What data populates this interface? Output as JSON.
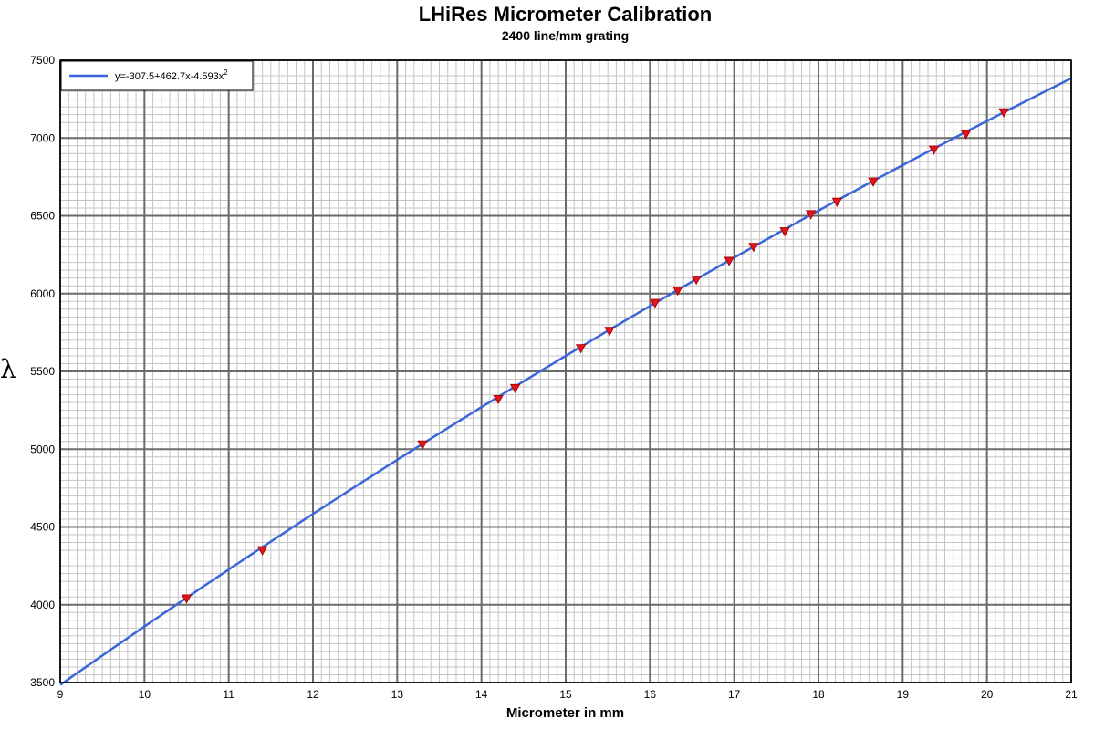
{
  "chart_data": {
    "type": "scatter",
    "title": "LHiRes Micrometer Calibration",
    "subtitle": "2400 line/mm grating",
    "xlabel": "Micrometer in mm",
    "ylabel": "λ",
    "xlim": [
      9,
      21
    ],
    "ylim": [
      3500,
      7500
    ],
    "x_ticks": [
      9,
      10,
      11,
      12,
      13,
      14,
      15,
      16,
      17,
      18,
      19,
      20,
      21
    ],
    "y_ticks": [
      3500,
      4000,
      4500,
      5000,
      5500,
      6000,
      6500,
      7000,
      7500
    ],
    "grid": true,
    "legend_position": "top-left",
    "fit": {
      "label": "y=-307.5+462.7x-4.593x",
      "label_superscript": "2",
      "coefficients": [
        -307.5,
        462.7,
        -4.593
      ],
      "color": "#3a66d9"
    },
    "points": {
      "color": "#e0151a",
      "x": [
        10.5,
        11.4,
        13.3,
        14.2,
        14.4,
        15.18,
        15.52,
        16.06,
        16.33,
        16.55,
        16.94,
        17.23,
        17.6,
        17.91,
        18.22,
        18.65,
        19.37,
        19.75,
        20.2
      ],
      "y": [
        4040,
        4350,
        5030,
        5322,
        5393,
        5649,
        5760,
        5940,
        6020,
        6090,
        6210,
        6300,
        6400,
        6510,
        6590,
        6720,
        6925,
        7025,
        7165
      ]
    }
  }
}
